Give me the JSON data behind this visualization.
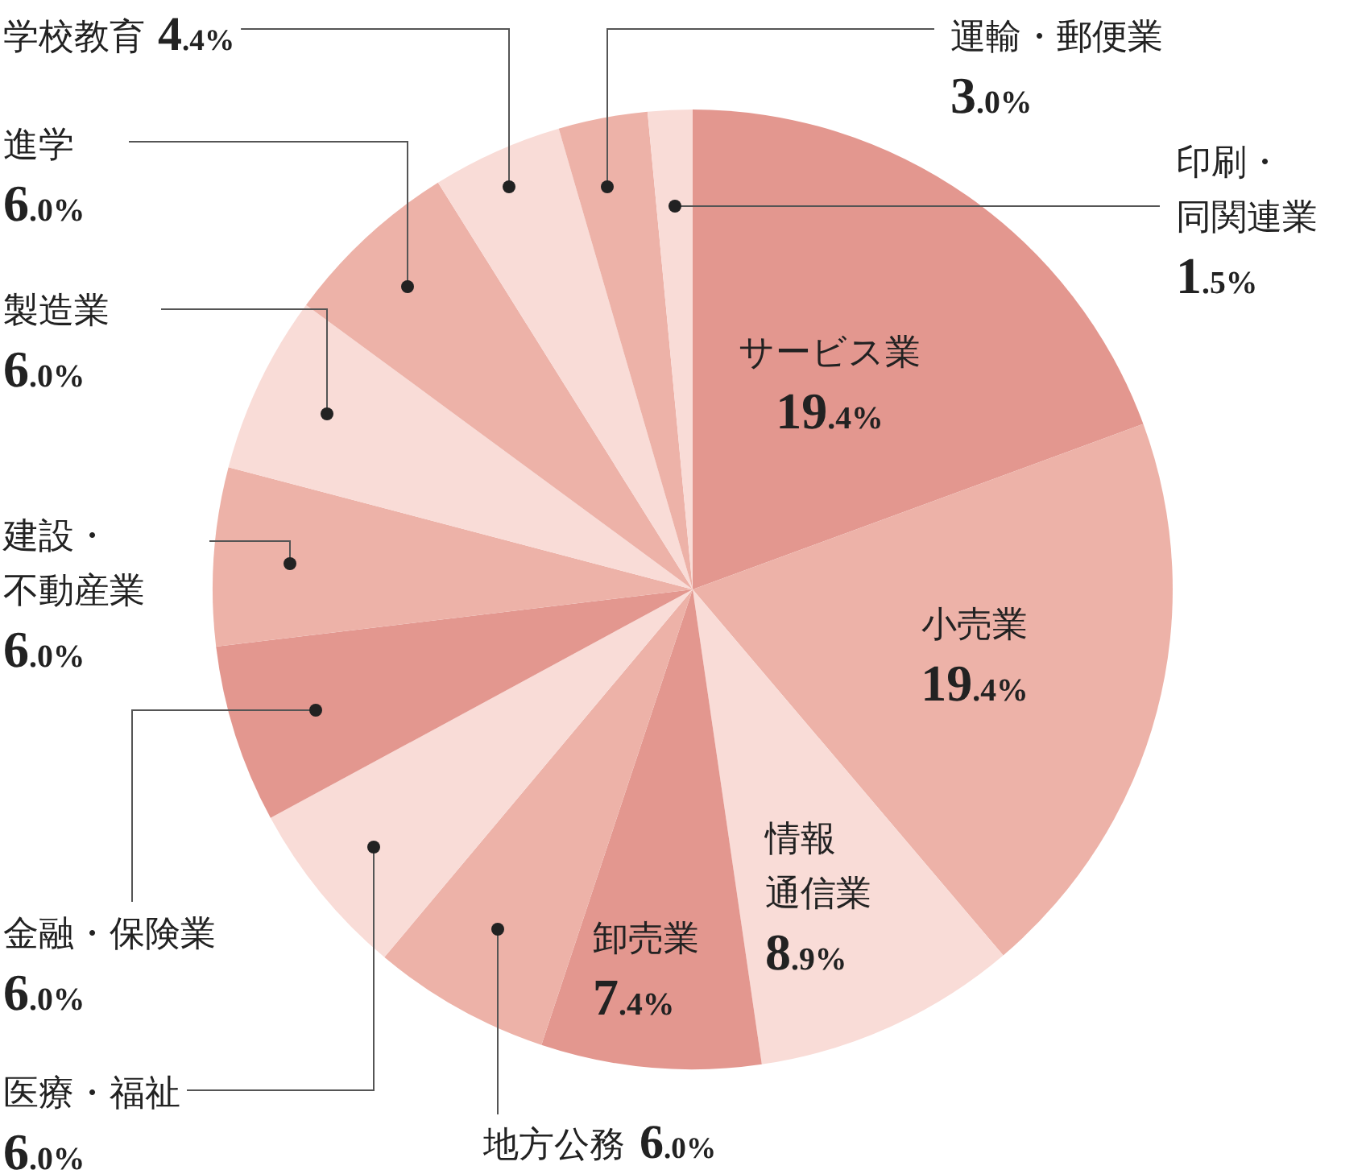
{
  "chart_data": {
    "type": "pie",
    "categories": [
      "サービス業",
      "小売業",
      "情報通信業",
      "卸売業",
      "地方公務",
      "医療・福祉",
      "金融・保険業",
      "建設・不動産業",
      "製造業",
      "進学",
      "学校教育",
      "運輸・郵便業",
      "印刷・同関連業"
    ],
    "values": [
      19.4,
      19.4,
      8.9,
      7.4,
      6.0,
      6.0,
      6.0,
      6.0,
      6.0,
      6.0,
      4.4,
      3.0,
      1.5
    ],
    "value_labels": [
      "19.4%",
      "19.4%",
      "8.9%",
      "7.4%",
      "6.0%",
      "6.0%",
      "6.0%",
      "6.0%",
      "6.0%",
      "6.0%",
      "4.4%",
      "3.0%",
      "1.5%"
    ],
    "colors": [
      "#e3978f",
      "#edb2a8",
      "#f9dcd7",
      "#e3978f",
      "#edb2a8",
      "#f9dcd7",
      "#e3978f",
      "#edb2a8",
      "#f9dcd7",
      "#edb2a8",
      "#f9dcd7",
      "#edb2a8",
      "#f9dcd7"
    ]
  }
}
